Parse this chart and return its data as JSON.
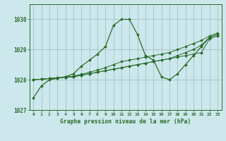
{
  "title": "Graphe pression niveau de la mer (hPa)",
  "x_values": [
    0,
    1,
    2,
    3,
    4,
    5,
    6,
    7,
    8,
    9,
    10,
    11,
    12,
    13,
    14,
    15,
    16,
    17,
    18,
    19,
    20,
    21,
    22,
    23
  ],
  "y_main": [
    1027.4,
    1027.8,
    1028.0,
    1028.05,
    1028.1,
    1028.2,
    1028.45,
    1028.65,
    1028.85,
    1029.1,
    1029.8,
    1030.0,
    1030.0,
    1029.5,
    1028.8,
    1028.65,
    1028.1,
    1028.0,
    1028.2,
    1028.5,
    1028.8,
    1029.1,
    1029.4,
    1029.5
  ],
  "y_env1": [
    1028.0,
    1028.02,
    1028.04,
    1028.06,
    1028.08,
    1028.1,
    1028.15,
    1028.2,
    1028.25,
    1028.3,
    1028.35,
    1028.4,
    1028.45,
    1028.5,
    1028.55,
    1028.6,
    1028.65,
    1028.7,
    1028.75,
    1028.8,
    1028.85,
    1028.9,
    1029.35,
    1029.45
  ],
  "y_env2": [
    1028.0,
    1028.02,
    1028.04,
    1028.06,
    1028.08,
    1028.1,
    1028.15,
    1028.2,
    1028.25,
    1028.3,
    1028.35,
    1028.4,
    1028.45,
    1028.5,
    1028.55,
    1028.6,
    1028.65,
    1028.7,
    1028.8,
    1028.9,
    1029.0,
    1029.15,
    1029.4,
    1029.5
  ],
  "y_env3": [
    1028.0,
    1028.02,
    1028.04,
    1028.07,
    1028.09,
    1028.12,
    1028.18,
    1028.25,
    1028.32,
    1028.4,
    1028.5,
    1028.6,
    1028.65,
    1028.7,
    1028.75,
    1028.8,
    1028.85,
    1028.9,
    1029.0,
    1029.1,
    1029.2,
    1029.3,
    1029.45,
    1029.55
  ],
  "ylim": [
    1027.0,
    1030.5
  ],
  "yticks": [
    1027,
    1028,
    1029,
    1030
  ],
  "bg_color": "#cce8ec",
  "line_color": "#2a6b2a",
  "grid_color": "#99bbbb",
  "title_color": "#2a6b2a"
}
